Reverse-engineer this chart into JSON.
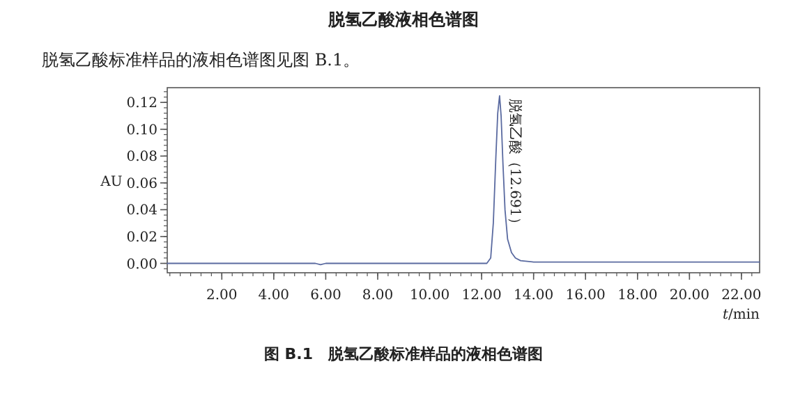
{
  "chart_data": {
    "type": "line",
    "title": "脱氢乙酸液相色谱图",
    "subtitle": "脱氢乙酸标准样品的液相色谱图见图 B.1。",
    "xlabel": "*t*/min",
    "ylabel": "AU",
    "annotations": [
      {
        "text": "脱氢乙酸（12.691）",
        "x": 12.691,
        "y": 0.125
      },
      "图 B.1　脱氢乙酸标准样品的液相色谱图"
    ],
    "xlim": [
      -0.1,
      22.7
    ],
    "ylim": [
      -0.007,
      0.131
    ],
    "xticks": [
      {
        "value": 2,
        "label": "2.00"
      },
      {
        "value": 4,
        "label": "4.00"
      },
      {
        "value": 6,
        "label": "6.00"
      },
      {
        "value": 8,
        "label": "8.00"
      },
      {
        "value": 10,
        "label": "10.00"
      },
      {
        "value": 12,
        "label": "12.00"
      },
      {
        "value": 14,
        "label": "14.00"
      },
      {
        "value": 16,
        "label": "16.00"
      },
      {
        "value": 18,
        "label": "18.00"
      },
      {
        "value": 20,
        "label": "20.00"
      },
      {
        "value": 22,
        "label": "22.00"
      }
    ],
    "yticks": [
      {
        "value": 0,
        "label": "0.00"
      },
      {
        "value": 0.02,
        "label": "0.02"
      },
      {
        "value": 0.04,
        "label": "0.04"
      },
      {
        "value": 0.06,
        "label": "0.06"
      },
      {
        "value": 0.08,
        "label": "0.08"
      },
      {
        "value": 0.1,
        "label": "0.10"
      },
      {
        "value": 0.12,
        "label": "0.12"
      }
    ],
    "series": [
      {
        "color": "#5a6aa0",
        "x": [
          -0.1,
          5.6,
          5.8,
          6.0,
          12.2,
          12.35,
          12.45,
          12.55,
          12.62,
          12.691,
          12.75,
          12.82,
          12.9,
          13.0,
          13.15,
          13.3,
          13.5,
          14.0,
          15.0,
          22.7
        ],
        "values": [
          0,
          0,
          -0.001,
          0,
          0,
          0.004,
          0.03,
          0.08,
          0.112,
          0.125,
          0.11,
          0.075,
          0.04,
          0.018,
          0.008,
          0.004,
          0.002,
          0.001,
          0.001,
          0.001
        ]
      }
    ],
    "grid": false,
    "marker": "none",
    "line_style": "solid"
  }
}
